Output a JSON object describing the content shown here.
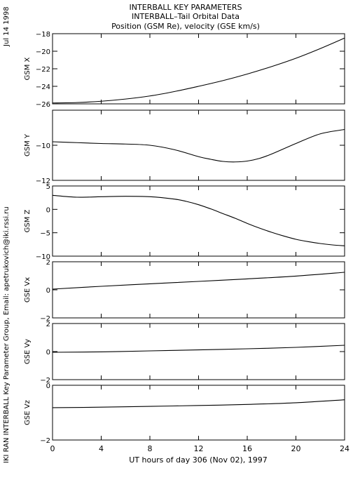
{
  "header": {
    "title": "INTERBALL KEY PARAMETERS",
    "subtitle": "INTERBALL–Tail Orbital Data",
    "subtitle2": "Position (GSM Re), velocity (GSE km/s)"
  },
  "side_date": "Jul 14 1998",
  "side_credit": "IKI RAN INTERBALL Key Parameter Group, Email: apetrukovich@iki.rssi.ru",
  "chart_data": {
    "type": "line",
    "xlabel": "UT hours of day 306 (Nov 02), 1997",
    "xlim": [
      0,
      24
    ],
    "xticks": [
      0,
      4,
      8,
      12,
      16,
      20,
      24
    ],
    "xtick_labels": [
      "0",
      "4",
      "8",
      "12",
      "16",
      "20",
      "24"
    ],
    "grid": false,
    "panels": [
      {
        "ylabel": "GSM X",
        "ylim": [
          -26,
          -18
        ],
        "yticks": [
          -26,
          -24,
          -22,
          -20,
          -18
        ],
        "ytick_labels": [
          "−26",
          "−24",
          "−22",
          "−20",
          "−18"
        ],
        "x": [
          0,
          2,
          4,
          6,
          8,
          10,
          12,
          14,
          16,
          18,
          20,
          22,
          24
        ],
        "y": [
          -25.9,
          -25.85,
          -25.7,
          -25.45,
          -25.1,
          -24.6,
          -24.0,
          -23.35,
          -22.6,
          -21.75,
          -20.8,
          -19.7,
          -18.5
        ]
      },
      {
        "ylabel": "GSM Y",
        "ylim": [
          -12,
          -8
        ],
        "yticks": [
          -12,
          -10
        ],
        "ytick_labels": [
          "−12",
          "−10"
        ],
        "x": [
          0,
          2,
          4,
          6,
          8,
          10,
          12,
          13,
          14,
          15,
          16,
          17,
          18,
          20,
          22,
          24
        ],
        "y": [
          -9.8,
          -9.85,
          -9.9,
          -9.93,
          -10.0,
          -10.25,
          -10.65,
          -10.8,
          -10.92,
          -10.95,
          -10.9,
          -10.75,
          -10.5,
          -9.9,
          -9.35,
          -9.1
        ]
      },
      {
        "ylabel": "GSM Z",
        "ylim": [
          -10,
          5
        ],
        "yticks": [
          -10,
          -5,
          0,
          5
        ],
        "ytick_labels": [
          "−10",
          "−5",
          "0",
          "5"
        ],
        "x": [
          0,
          2,
          4,
          6,
          8,
          10,
          11,
          12,
          13,
          14,
          15,
          16,
          17,
          18,
          19,
          20,
          21,
          22,
          23,
          24
        ],
        "y": [
          3.0,
          2.6,
          2.7,
          2.8,
          2.7,
          2.2,
          1.7,
          1.0,
          0.1,
          -0.9,
          -1.9,
          -3.0,
          -4.0,
          -4.9,
          -5.7,
          -6.4,
          -6.9,
          -7.3,
          -7.6,
          -7.8
        ]
      },
      {
        "ylabel": "GSE Vx",
        "ylim": [
          -2,
          2
        ],
        "yticks": [
          -2,
          0,
          2
        ],
        "ytick_labels": [
          "−2",
          "0",
          "2"
        ],
        "x": [
          0,
          4,
          8,
          12,
          16,
          20,
          24
        ],
        "y": [
          0.05,
          0.25,
          0.43,
          0.6,
          0.78,
          0.98,
          1.25
        ]
      },
      {
        "ylabel": "GSE Vy",
        "ylim": [
          -2,
          2
        ],
        "yticks": [
          -2,
          0,
          2
        ],
        "ytick_labels": [
          "−2",
          "0",
          "2"
        ],
        "x": [
          0,
          4,
          8,
          12,
          16,
          20,
          24
        ],
        "y": [
          -0.05,
          -0.02,
          0.05,
          0.12,
          0.2,
          0.3,
          0.45
        ]
      },
      {
        "ylabel": "GSE Vz",
        "ylim": [
          -2,
          0
        ],
        "yticks": [
          -2,
          0
        ],
        "ytick_labels": [
          "−2",
          "0"
        ],
        "x": [
          0,
          4,
          8,
          12,
          16,
          20,
          24
        ],
        "y": [
          -0.82,
          -0.8,
          -0.77,
          -0.74,
          -0.7,
          -0.64,
          -0.53
        ]
      }
    ]
  }
}
